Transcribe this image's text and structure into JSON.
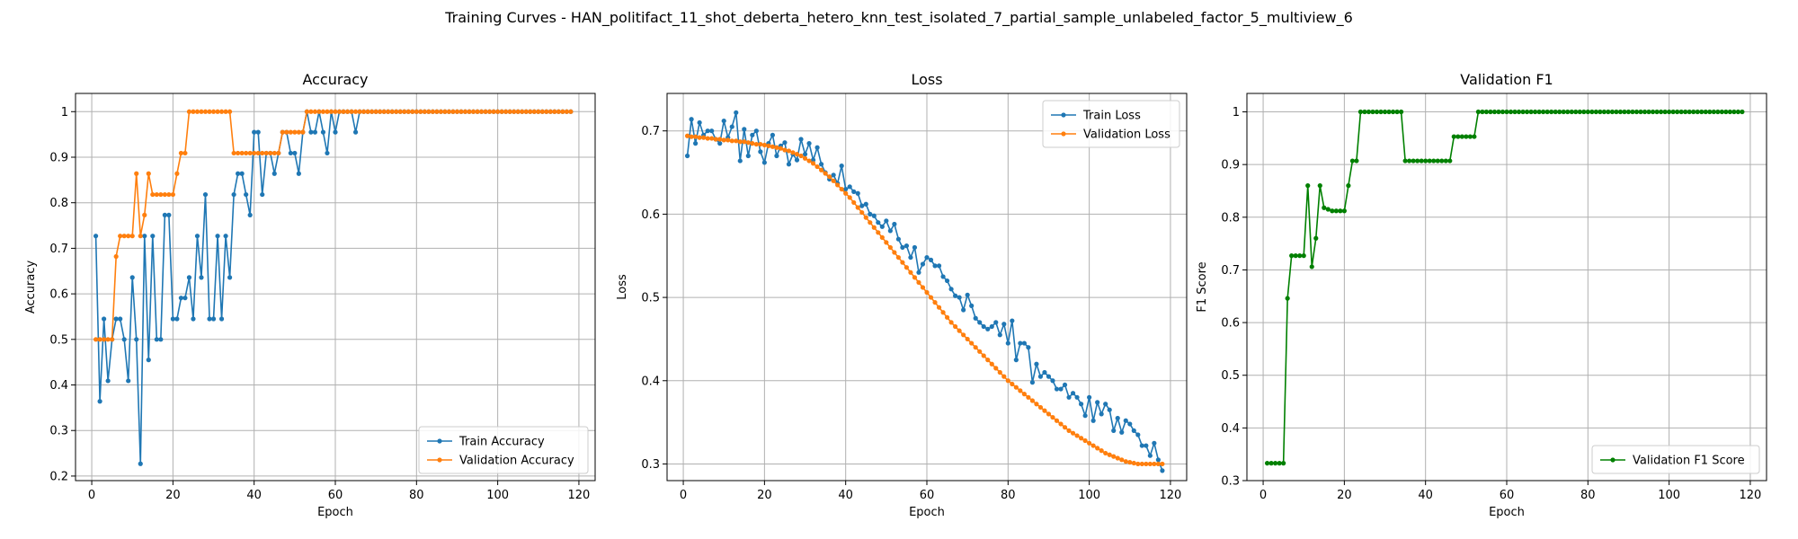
{
  "suptitle": "Training Curves - HAN_politifact_11_shot_deberta_hetero_knn_test_isolated_7_partial_sample_unlabeled_factor_5_multiview_6",
  "colors": {
    "blue": "#1f77b4",
    "orange": "#ff7f0e",
    "green": "#008000",
    "grid": "#b0b0b0"
  },
  "chart_data": [
    {
      "type": "line",
      "title": "Accuracy",
      "xlabel": "Epoch",
      "ylabel": "Accuracy",
      "xlim": [
        -4,
        124
      ],
      "ylim": [
        0.19,
        1.04
      ],
      "xticks": [
        0,
        20,
        40,
        60,
        80,
        100,
        120
      ],
      "yticks": [
        0.2,
        0.3,
        0.4,
        0.5,
        0.6,
        0.7,
        0.8,
        0.9,
        1.0
      ],
      "grid": true,
      "legend_position": "lower-right",
      "series": [
        {
          "name": "Train Accuracy",
          "color": "#1f77b4",
          "values": [
            0.727,
            0.364,
            0.545,
            0.409,
            0.5,
            0.545,
            0.545,
            0.5,
            0.409,
            0.636,
            0.5,
            0.227,
            0.727,
            0.455,
            0.727,
            0.5,
            0.5,
            0.773,
            0.773,
            0.545,
            0.545,
            0.591,
            0.591,
            0.636,
            0.545,
            0.727,
            0.636,
            0.818,
            0.545,
            0.545,
            0.727,
            0.545,
            0.727,
            0.636,
            0.818,
            0.864,
            0.864,
            0.818,
            0.773,
            0.955,
            0.955,
            0.818,
            0.909,
            0.909,
            0.864,
            0.909,
            0.955,
            0.955,
            0.909,
            0.909,
            0.864,
            0.955,
            1.0,
            0.955,
            0.955,
            1.0,
            0.955,
            0.909,
            1.0,
            0.955,
            1.0,
            1.0,
            1.0,
            1.0,
            0.955,
            1.0,
            1.0,
            1.0,
            1.0,
            1.0,
            1.0,
            1.0,
            1.0,
            1.0,
            1.0,
            1.0,
            1.0,
            1.0,
            1.0,
            1.0,
            1.0,
            1.0,
            1.0,
            1.0,
            1.0,
            1.0,
            1.0,
            1.0,
            1.0,
            1.0,
            1.0,
            1.0,
            1.0,
            1.0,
            1.0,
            1.0,
            1.0,
            1.0,
            1.0,
            1.0,
            1.0,
            1.0,
            1.0,
            1.0,
            1.0,
            1.0,
            1.0,
            1.0,
            1.0,
            1.0,
            1.0,
            1.0,
            1.0,
            1.0,
            1.0,
            1.0,
            1.0,
            1.0
          ]
        },
        {
          "name": "Validation Accuracy",
          "color": "#ff7f0e",
          "values": [
            0.5,
            0.5,
            0.5,
            0.5,
            0.5,
            0.682,
            0.727,
            0.727,
            0.727,
            0.727,
            0.864,
            0.727,
            0.773,
            0.864,
            0.818,
            0.818,
            0.818,
            0.818,
            0.818,
            0.818,
            0.864,
            0.909,
            0.909,
            1.0,
            1.0,
            1.0,
            1.0,
            1.0,
            1.0,
            1.0,
            1.0,
            1.0,
            1.0,
            1.0,
            0.909,
            0.909,
            0.909,
            0.909,
            0.909,
            0.909,
            0.909,
            0.909,
            0.909,
            0.909,
            0.909,
            0.909,
            0.955,
            0.955,
            0.955,
            0.955,
            0.955,
            0.955,
            1.0,
            1.0,
            1.0,
            1.0,
            1.0,
            1.0,
            1.0,
            1.0,
            1.0,
            1.0,
            1.0,
            1.0,
            1.0,
            1.0,
            1.0,
            1.0,
            1.0,
            1.0,
            1.0,
            1.0,
            1.0,
            1.0,
            1.0,
            1.0,
            1.0,
            1.0,
            1.0,
            1.0,
            1.0,
            1.0,
            1.0,
            1.0,
            1.0,
            1.0,
            1.0,
            1.0,
            1.0,
            1.0,
            1.0,
            1.0,
            1.0,
            1.0,
            1.0,
            1.0,
            1.0,
            1.0,
            1.0,
            1.0,
            1.0,
            1.0,
            1.0,
            1.0,
            1.0,
            1.0,
            1.0,
            1.0,
            1.0,
            1.0,
            1.0,
            1.0,
            1.0,
            1.0,
            1.0,
            1.0,
            1.0,
            1.0
          ]
        }
      ]
    },
    {
      "type": "line",
      "title": "Loss",
      "xlabel": "Epoch",
      "ylabel": "Loss",
      "xlim": [
        -4,
        124
      ],
      "ylim": [
        0.28,
        0.745
      ],
      "xticks": [
        0,
        20,
        40,
        60,
        80,
        100,
        120
      ],
      "yticks": [
        0.3,
        0.4,
        0.5,
        0.6,
        0.7
      ],
      "grid": true,
      "legend_position": "upper-right",
      "series": [
        {
          "name": "Train Loss",
          "color": "#1f77b4",
          "values": [
            0.67,
            0.714,
            0.685,
            0.71,
            0.695,
            0.7,
            0.7,
            0.69,
            0.685,
            0.712,
            0.692,
            0.705,
            0.722,
            0.664,
            0.702,
            0.67,
            0.695,
            0.7,
            0.675,
            0.662,
            0.685,
            0.695,
            0.67,
            0.682,
            0.686,
            0.66,
            0.672,
            0.665,
            0.69,
            0.672,
            0.685,
            0.665,
            0.68,
            0.66,
            0.65,
            0.642,
            0.647,
            0.637,
            0.658,
            0.63,
            0.633,
            0.627,
            0.625,
            0.61,
            0.612,
            0.6,
            0.598,
            0.59,
            0.585,
            0.592,
            0.58,
            0.588,
            0.57,
            0.56,
            0.562,
            0.548,
            0.56,
            0.53,
            0.54,
            0.548,
            0.545,
            0.538,
            0.538,
            0.525,
            0.52,
            0.51,
            0.502,
            0.5,
            0.485,
            0.503,
            0.49,
            0.475,
            0.47,
            0.465,
            0.462,
            0.465,
            0.47,
            0.455,
            0.468,
            0.445,
            0.472,
            0.425,
            0.445,
            0.445,
            0.44,
            0.398,
            0.42,
            0.405,
            0.41,
            0.405,
            0.4,
            0.39,
            0.39,
            0.395,
            0.38,
            0.385,
            0.38,
            0.372,
            0.358,
            0.38,
            0.352,
            0.374,
            0.36,
            0.372,
            0.365,
            0.34,
            0.355,
            0.338,
            0.352,
            0.348,
            0.34,
            0.335,
            0.322,
            0.322,
            0.31,
            0.325,
            0.305,
            0.292
          ]
        },
        {
          "name": "Validation Loss",
          "color": "#ff7f0e",
          "values": [
            0.694,
            0.693,
            0.693,
            0.692,
            0.692,
            0.691,
            0.691,
            0.69,
            0.69,
            0.689,
            0.689,
            0.688,
            0.688,
            0.687,
            0.687,
            0.686,
            0.685,
            0.684,
            0.684,
            0.683,
            0.682,
            0.681,
            0.68,
            0.679,
            0.677,
            0.676,
            0.674,
            0.672,
            0.67,
            0.667,
            0.664,
            0.661,
            0.657,
            0.653,
            0.649,
            0.645,
            0.64,
            0.635,
            0.63,
            0.625,
            0.62,
            0.614,
            0.608,
            0.602,
            0.596,
            0.59,
            0.584,
            0.578,
            0.572,
            0.566,
            0.56,
            0.554,
            0.548,
            0.542,
            0.536,
            0.53,
            0.524,
            0.518,
            0.512,
            0.506,
            0.5,
            0.494,
            0.488,
            0.482,
            0.476,
            0.47,
            0.465,
            0.46,
            0.455,
            0.45,
            0.445,
            0.44,
            0.435,
            0.43,
            0.425,
            0.42,
            0.415,
            0.41,
            0.405,
            0.4,
            0.396,
            0.392,
            0.388,
            0.384,
            0.38,
            0.376,
            0.372,
            0.368,
            0.364,
            0.36,
            0.356,
            0.352,
            0.348,
            0.344,
            0.34,
            0.337,
            0.334,
            0.331,
            0.328,
            0.325,
            0.322,
            0.319,
            0.316,
            0.313,
            0.311,
            0.309,
            0.307,
            0.305,
            0.303,
            0.302,
            0.301,
            0.3,
            0.3,
            0.3,
            0.3,
            0.3,
            0.3,
            0.3
          ]
        }
      ]
    },
    {
      "type": "line",
      "title": "Validation F1",
      "xlabel": "Epoch",
      "ylabel": "F1 Score",
      "xlim": [
        -4,
        124
      ],
      "ylim": [
        0.3,
        1.035
      ],
      "xticks": [
        0,
        20,
        40,
        60,
        80,
        100,
        120
      ],
      "yticks": [
        0.3,
        0.4,
        0.5,
        0.6,
        0.7,
        0.8,
        0.9,
        1.0
      ],
      "grid": true,
      "legend_position": "lower-right",
      "series": [
        {
          "name": "Validation F1 Score",
          "color": "#008000",
          "values": [
            0.333,
            0.333,
            0.333,
            0.333,
            0.333,
            0.646,
            0.727,
            0.727,
            0.727,
            0.727,
            0.86,
            0.706,
            0.76,
            0.86,
            0.818,
            0.815,
            0.812,
            0.812,
            0.812,
            0.812,
            0.86,
            0.907,
            0.907,
            1.0,
            1.0,
            1.0,
            1.0,
            1.0,
            1.0,
            1.0,
            1.0,
            1.0,
            1.0,
            1.0,
            0.907,
            0.907,
            0.907,
            0.907,
            0.907,
            0.907,
            0.907,
            0.907,
            0.907,
            0.907,
            0.907,
            0.907,
            0.953,
            0.953,
            0.953,
            0.953,
            0.953,
            0.953,
            1.0,
            1.0,
            1.0,
            1.0,
            1.0,
            1.0,
            1.0,
            1.0,
            1.0,
            1.0,
            1.0,
            1.0,
            1.0,
            1.0,
            1.0,
            1.0,
            1.0,
            1.0,
            1.0,
            1.0,
            1.0,
            1.0,
            1.0,
            1.0,
            1.0,
            1.0,
            1.0,
            1.0,
            1.0,
            1.0,
            1.0,
            1.0,
            1.0,
            1.0,
            1.0,
            1.0,
            1.0,
            1.0,
            1.0,
            1.0,
            1.0,
            1.0,
            1.0,
            1.0,
            1.0,
            1.0,
            1.0,
            1.0,
            1.0,
            1.0,
            1.0,
            1.0,
            1.0,
            1.0,
            1.0,
            1.0,
            1.0,
            1.0,
            1.0,
            1.0,
            1.0,
            1.0,
            1.0,
            1.0,
            1.0,
            1.0
          ]
        }
      ]
    }
  ]
}
